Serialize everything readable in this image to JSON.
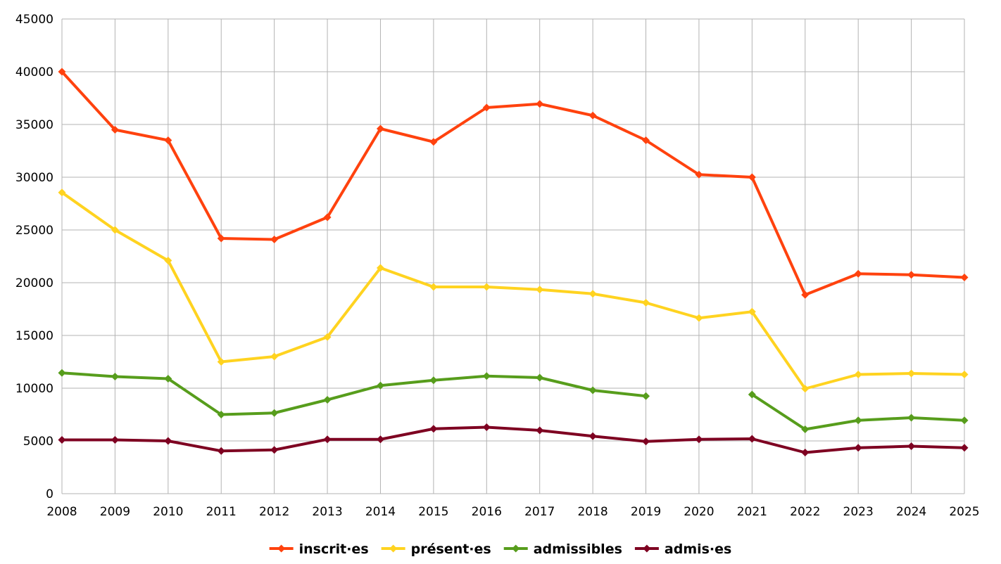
{
  "chart_data": {
    "type": "line",
    "title": "",
    "xlabel": "",
    "ylabel": "",
    "categories": [
      "2008",
      "2009",
      "2010",
      "2011",
      "2012",
      "2013",
      "2014",
      "2015",
      "2016",
      "2017",
      "2018",
      "2019",
      "2020",
      "2021",
      "2022",
      "2023",
      "2024",
      "2025"
    ],
    "ylim": [
      0,
      45000
    ],
    "yticks": [
      0,
      5000,
      10000,
      15000,
      20000,
      25000,
      30000,
      35000,
      40000,
      45000
    ],
    "grid": true,
    "legend_position": "bottom-center",
    "series": [
      {
        "name": "inscrit·es",
        "color": "#ff420e",
        "values": [
          40000,
          34500,
          33500,
          24200,
          24100,
          26200,
          34600,
          33350,
          36600,
          36950,
          35850,
          33500,
          30250,
          30000,
          18850,
          20850,
          20750,
          20500
        ]
      },
      {
        "name": "présent·es",
        "color": "#ffd320",
        "values": [
          28550,
          25000,
          22100,
          12500,
          13000,
          14850,
          21400,
          19600,
          19600,
          19350,
          18950,
          18100,
          16650,
          17250,
          9950,
          11300,
          11400,
          11300
        ]
      },
      {
        "name": "admissibles",
        "color": "#579d1c",
        "values": [
          11450,
          11100,
          10900,
          7500,
          7650,
          8900,
          10250,
          10750,
          11150,
          11000,
          9800,
          9250,
          null,
          9400,
          6100,
          6950,
          7200,
          6950
        ]
      },
      {
        "name": "admis·es",
        "color": "#7e0021",
        "values": [
          5100,
          5100,
          5000,
          4050,
          4150,
          5150,
          5150,
          6150,
          6300,
          6000,
          5450,
          4950,
          5150,
          5200,
          3900,
          4350,
          4500,
          4350
        ]
      }
    ]
  }
}
